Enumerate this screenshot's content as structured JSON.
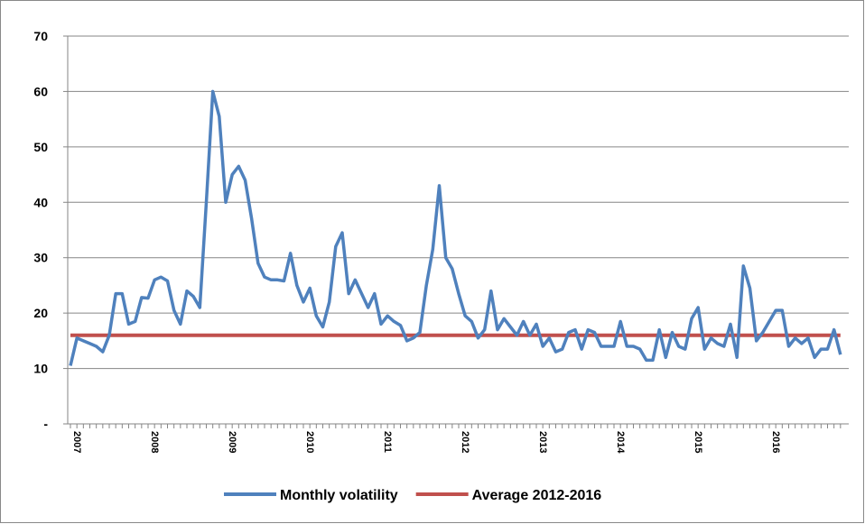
{
  "chart_data": {
    "type": "line",
    "categories": [
      "2007",
      null,
      null,
      null,
      null,
      null,
      null,
      null,
      null,
      null,
      null,
      null,
      "2008",
      null,
      null,
      null,
      null,
      null,
      null,
      null,
      null,
      null,
      null,
      null,
      "2009",
      null,
      null,
      null,
      null,
      null,
      null,
      null,
      null,
      null,
      null,
      null,
      "2010",
      null,
      null,
      null,
      null,
      null,
      null,
      null,
      null,
      null,
      null,
      null,
      "2011",
      null,
      null,
      null,
      null,
      null,
      null,
      null,
      null,
      null,
      null,
      null,
      "2012",
      null,
      null,
      null,
      null,
      null,
      null,
      null,
      null,
      null,
      null,
      null,
      "2013",
      null,
      null,
      null,
      null,
      null,
      null,
      null,
      null,
      null,
      null,
      null,
      "2014",
      null,
      null,
      null,
      null,
      null,
      null,
      null,
      null,
      null,
      null,
      null,
      "2015",
      null,
      null,
      null,
      null,
      null,
      null,
      null,
      null,
      null,
      null,
      null,
      "2016",
      null,
      null,
      null,
      null,
      null,
      null,
      null,
      null,
      null,
      null,
      null
    ],
    "series": [
      {
        "name": "Monthly volatility",
        "color": "#4f81bd",
        "values": [
          10.5,
          15.5,
          15,
          14.5,
          14,
          13,
          16,
          23.5,
          23.5,
          18,
          18.5,
          22.8,
          22.7,
          26,
          26.5,
          25.8,
          20.5,
          18,
          24,
          23,
          21,
          40,
          60,
          55.5,
          40,
          45,
          46.5,
          44,
          37,
          29,
          26.5,
          26,
          26,
          25.8,
          30.8,
          25,
          22,
          24.5,
          19.5,
          17.5,
          22,
          32,
          34.5,
          23.5,
          26,
          23.5,
          21,
          23.5,
          18,
          19.5,
          18.5,
          17.8,
          15,
          15.5,
          16.5,
          25,
          31.5,
          43,
          30,
          28,
          23.5,
          19.5,
          18.5,
          15.5,
          17,
          24,
          17,
          19,
          17.5,
          16,
          18.5,
          16,
          18,
          14,
          15.5,
          13,
          13.5,
          16.5,
          17,
          13.5,
          17,
          16.5,
          14,
          14,
          14,
          18.5,
          14,
          14,
          13.5,
          11.5,
          11.5,
          17,
          12,
          16.5,
          14,
          13.5,
          19,
          21,
          13.5,
          15.5,
          14.5,
          14,
          18,
          12,
          28.5,
          24.5,
          15,
          16.5,
          18.5,
          20.5,
          20.5,
          14,
          15.5,
          14.5,
          15.5,
          12,
          13.5,
          13.5,
          17,
          12.5
        ]
      },
      {
        "name": "Average 2012-2016",
        "color": "#c0504d",
        "values": [
          16,
          16,
          16,
          16,
          16,
          16,
          16,
          16,
          16,
          16,
          16,
          16,
          16,
          16,
          16,
          16,
          16,
          16,
          16,
          16,
          16,
          16,
          16,
          16,
          16,
          16,
          16,
          16,
          16,
          16,
          16,
          16,
          16,
          16,
          16,
          16,
          16,
          16,
          16,
          16,
          16,
          16,
          16,
          16,
          16,
          16,
          16,
          16,
          16,
          16,
          16,
          16,
          16,
          16,
          16,
          16,
          16,
          16,
          16,
          16,
          16,
          16,
          16,
          16,
          16,
          16,
          16,
          16,
          16,
          16,
          16,
          16,
          16,
          16,
          16,
          16,
          16,
          16,
          16,
          16,
          16,
          16,
          16,
          16,
          16,
          16,
          16,
          16,
          16,
          16,
          16,
          16,
          16,
          16,
          16,
          16,
          16,
          16,
          16,
          16,
          16,
          16,
          16,
          16,
          16,
          16,
          16,
          16,
          16,
          16,
          16,
          16,
          16,
          16,
          16,
          16,
          16,
          16,
          16,
          16
        ]
      }
    ],
    "ylim": [
      0,
      70
    ],
    "yticks": [
      {
        "value": 0,
        "label": "-"
      },
      10,
      20,
      30,
      40,
      50,
      60,
      70
    ],
    "grid": true
  }
}
